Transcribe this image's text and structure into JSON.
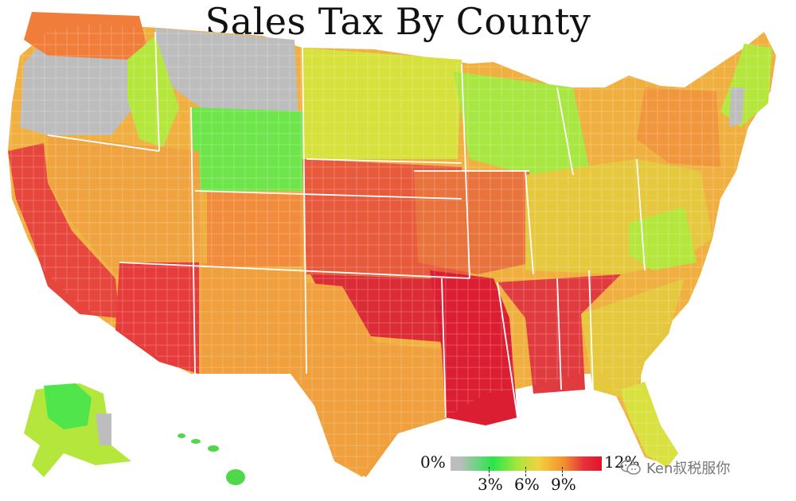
{
  "title": "Sales Tax By County",
  "legend": {
    "min_label": "0%",
    "max_label": "12%",
    "ticks": [
      "3%",
      "6%",
      "9%"
    ],
    "colors": [
      "#bdbdbd",
      "#28e64a",
      "#a6e63c",
      "#f2d23e",
      "#f2902e",
      "#e6313b",
      "#e0142c"
    ]
  },
  "watermark": {
    "text": "Ken叔税服你",
    "icon": "wechat-icon"
  },
  "colors": {
    "no_tax": "#bdbdbd",
    "low": "#3ce646",
    "low_mid": "#b4e63c",
    "mid": "#f0c841",
    "mid_high": "#f0963c",
    "high": "#e6463c",
    "very_high": "#dc1e32",
    "border": "#ffffff"
  }
}
